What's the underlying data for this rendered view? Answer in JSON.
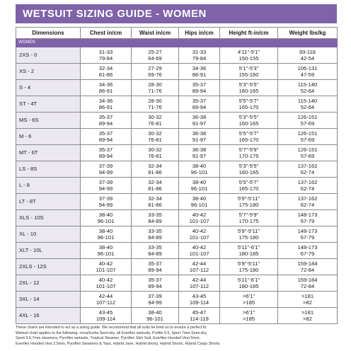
{
  "header": {
    "title": "WETSUIT SIZING GUIDE - WOMEN"
  },
  "table": {
    "headers": [
      "Dimensions",
      "Chest in/cm",
      "Waist in/cm",
      "Hips in/cm",
      "Height ft-in/cm",
      "Weight lbs/kg"
    ],
    "section": "WOMEN",
    "rows": [
      {
        "dimension": "2XS - 0",
        "cells": [
          [
            "31-33",
            "79-84"
          ],
          [
            "25-27",
            "64-69"
          ],
          [
            "31-33",
            "79-84"
          ],
          [
            "4'11\"-5'1\"",
            "150-155"
          ],
          [
            "93-118",
            "42-54"
          ]
        ]
      },
      {
        "dimension": "XS - 2",
        "cells": [
          [
            "32-34",
            "81-86"
          ],
          [
            "27-29",
            "69-76"
          ],
          [
            "34-36",
            "86-91"
          ],
          [
            "5'1\"-5'3\"",
            "155-160"
          ],
          [
            "106-131",
            "47-59"
          ]
        ]
      },
      {
        "dimension": "S - 4",
        "cells": [
          [
            "34-36",
            "86-91"
          ],
          [
            "28-30",
            "71-76"
          ],
          [
            "35-37",
            "89-94"
          ],
          [
            "5'3\"-5'5\"",
            "160-165"
          ],
          [
            "115-140",
            "52-64"
          ]
        ]
      },
      {
        "dimension": "ST - 4T",
        "cells": [
          [
            "34-36",
            "86-91"
          ],
          [
            "28-30",
            "71-76"
          ],
          [
            "35-37",
            "89-94"
          ],
          [
            "5'5\"-5'7\"",
            "165-170"
          ],
          [
            "115-140",
            "52-64"
          ]
        ]
      },
      {
        "dimension": "MS - 6S",
        "cells": [
          [
            "35-37",
            "89-94"
          ],
          [
            "30-32",
            "76-81"
          ],
          [
            "36-38",
            "91-97"
          ],
          [
            "5'3\"-5'5\"",
            "160-165"
          ],
          [
            "126-151",
            "57-69"
          ]
        ]
      },
      {
        "dimension": "M - 6",
        "cells": [
          [
            "35-37",
            "89-94"
          ],
          [
            "30-32",
            "76-81"
          ],
          [
            "36-38",
            "91-97"
          ],
          [
            "5'5\"-5'7\"",
            "165-170"
          ],
          [
            "126-151",
            "57-69"
          ]
        ]
      },
      {
        "dimension": "MT - 6T",
        "cells": [
          [
            "35-37",
            "89-94"
          ],
          [
            "30-32",
            "76-81"
          ],
          [
            "36-38",
            "91-97"
          ],
          [
            "5'7\"-5'9\"",
            "170-175"
          ],
          [
            "126-151",
            "57-69"
          ]
        ]
      },
      {
        "dimension": "LS - 8S",
        "cells": [
          [
            "37-39",
            "94-99"
          ],
          [
            "32-34",
            "81-86"
          ],
          [
            "38-40",
            "96-101"
          ],
          [
            "5'3\"-5'5\"",
            "160-165"
          ],
          [
            "137-162",
            "62-74"
          ]
        ]
      },
      {
        "dimension": "L - 8",
        "cells": [
          [
            "37-39",
            "94-99"
          ],
          [
            "32-34",
            "81-86"
          ],
          [
            "38-40",
            "96-101"
          ],
          [
            "5'5\"-5'7\"",
            "165-170"
          ],
          [
            "137-162",
            "62-74"
          ]
        ]
      },
      {
        "dimension": "LT - 8T",
        "cells": [
          [
            "37-39",
            "94-99"
          ],
          [
            "32-34",
            "81-86"
          ],
          [
            "38-40",
            "96-101"
          ],
          [
            "5'9\"-5'11\"",
            "175-180"
          ],
          [
            "137-162",
            "62-74"
          ]
        ]
      },
      {
        "dimension": "XLS - 10S",
        "cells": [
          [
            "38-40",
            "96-101"
          ],
          [
            "33-35",
            "84-89"
          ],
          [
            "40-42",
            "101-107"
          ],
          [
            "5'7\"-5'9\"",
            "170-175"
          ],
          [
            "148-173",
            "67-79"
          ]
        ]
      },
      {
        "dimension": "XL - 10",
        "cells": [
          [
            "38-40",
            "96-101"
          ],
          [
            "33-35",
            "84-89"
          ],
          [
            "40-42",
            "101-107"
          ],
          [
            "5'9\"-5'11\"",
            "175-180"
          ],
          [
            "148-173",
            "67-79"
          ]
        ]
      },
      {
        "dimension": "XLT - 10L",
        "cells": [
          [
            "38-40",
            "96-101"
          ],
          [
            "33-35",
            "84-89"
          ],
          [
            "40-42",
            "101-107"
          ],
          [
            "5'11\"-6'1\"",
            "180-185"
          ],
          [
            "148-173",
            "67-79"
          ]
        ]
      },
      {
        "dimension": "2XLS - 12S",
        "cells": [
          [
            "40-42",
            "101-107"
          ],
          [
            "35-37",
            "89-94"
          ],
          [
            "42-44",
            "107-112"
          ],
          [
            "5'9\"-5'11\"",
            "175-180"
          ],
          [
            "159-184",
            "72-84"
          ]
        ]
      },
      {
        "dimension": "2XL - 12",
        "cells": [
          [
            "40-42",
            "101-107"
          ],
          [
            "35-37",
            "89-94"
          ],
          [
            "42-44",
            "107-112"
          ],
          [
            "5'11\"-6'1\"",
            "180-185"
          ],
          [
            "159-184",
            "72-84"
          ]
        ]
      },
      {
        "dimension": "3XL - 14",
        "cells": [
          [
            "42-44",
            "107-112"
          ],
          [
            "37-39",
            "94-99"
          ],
          [
            "43-45",
            "109-114"
          ],
          [
            ">6'1\"",
            ">185"
          ],
          [
            ">181",
            ">82"
          ]
        ]
      },
      {
        "dimension": "4XL - 16",
        "cells": [
          [
            "43-45",
            "109-114"
          ],
          [
            "38-40",
            "96-101"
          ],
          [
            "45-47",
            "114-119"
          ],
          [
            ">6'1\"",
            ">185"
          ],
          [
            ">181",
            ">82"
          ]
        ]
      }
    ]
  },
  "footer": {
    "lines": [
      "These charts are intended to act as a sizing guide. We recommend that all suits be tried on to ensure a perfect fit.",
      "Wetsuit chart applies to the following: novaScotia Semi-dry, all Everflex wetsuits, Profile 0.5, Sport 7mm Semi-dry,",
      "Sport 3,5,7mm steamers, Pyroflex wetsuits, Tropical Steamer, Pyroflex Skin Suit, Everflex Hooded Vest 5mm,",
      "Everflex Hooded Vest 2.5mm, Pyroflex Steamers & Tops, Hybrid Jane, Hybrid shorty, Hybrid Shorts, Hybrid Cargo Shorts."
    ]
  }
}
